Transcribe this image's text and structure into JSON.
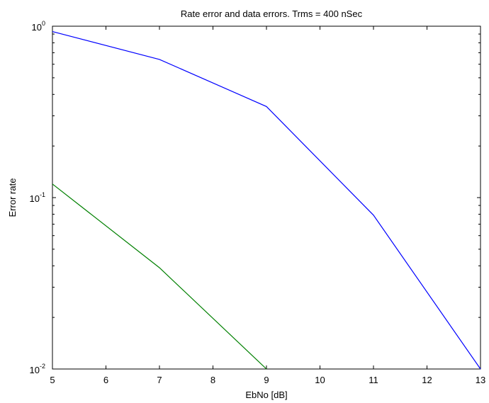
{
  "chart_data": {
    "type": "line",
    "title": "Rate error and data errors. Trms = 400 nSec",
    "xlabel": "EbNo [dB]",
    "ylabel": "Error rate",
    "xlim": [
      5,
      13
    ],
    "ylim": [
      0.01,
      1
    ],
    "yscale": "log",
    "grid": false,
    "x_ticks": [
      5,
      6,
      7,
      8,
      9,
      10,
      11,
      12,
      13
    ],
    "y_ticks": [
      {
        "value": 0.01,
        "base": "10",
        "exp": "-2"
      },
      {
        "value": 0.1,
        "base": "10",
        "exp": "-1"
      },
      {
        "value": 1,
        "base": "10",
        "exp": "0"
      }
    ],
    "series": [
      {
        "color": "#0000ff",
        "x": [
          5,
          7,
          9,
          11,
          13
        ],
        "y": [
          0.93,
          0.64,
          0.34,
          0.079,
          0.01
        ]
      },
      {
        "color": "#008000",
        "x": [
          5,
          7,
          9
        ],
        "y": [
          0.12,
          0.039,
          0.01
        ]
      }
    ]
  }
}
